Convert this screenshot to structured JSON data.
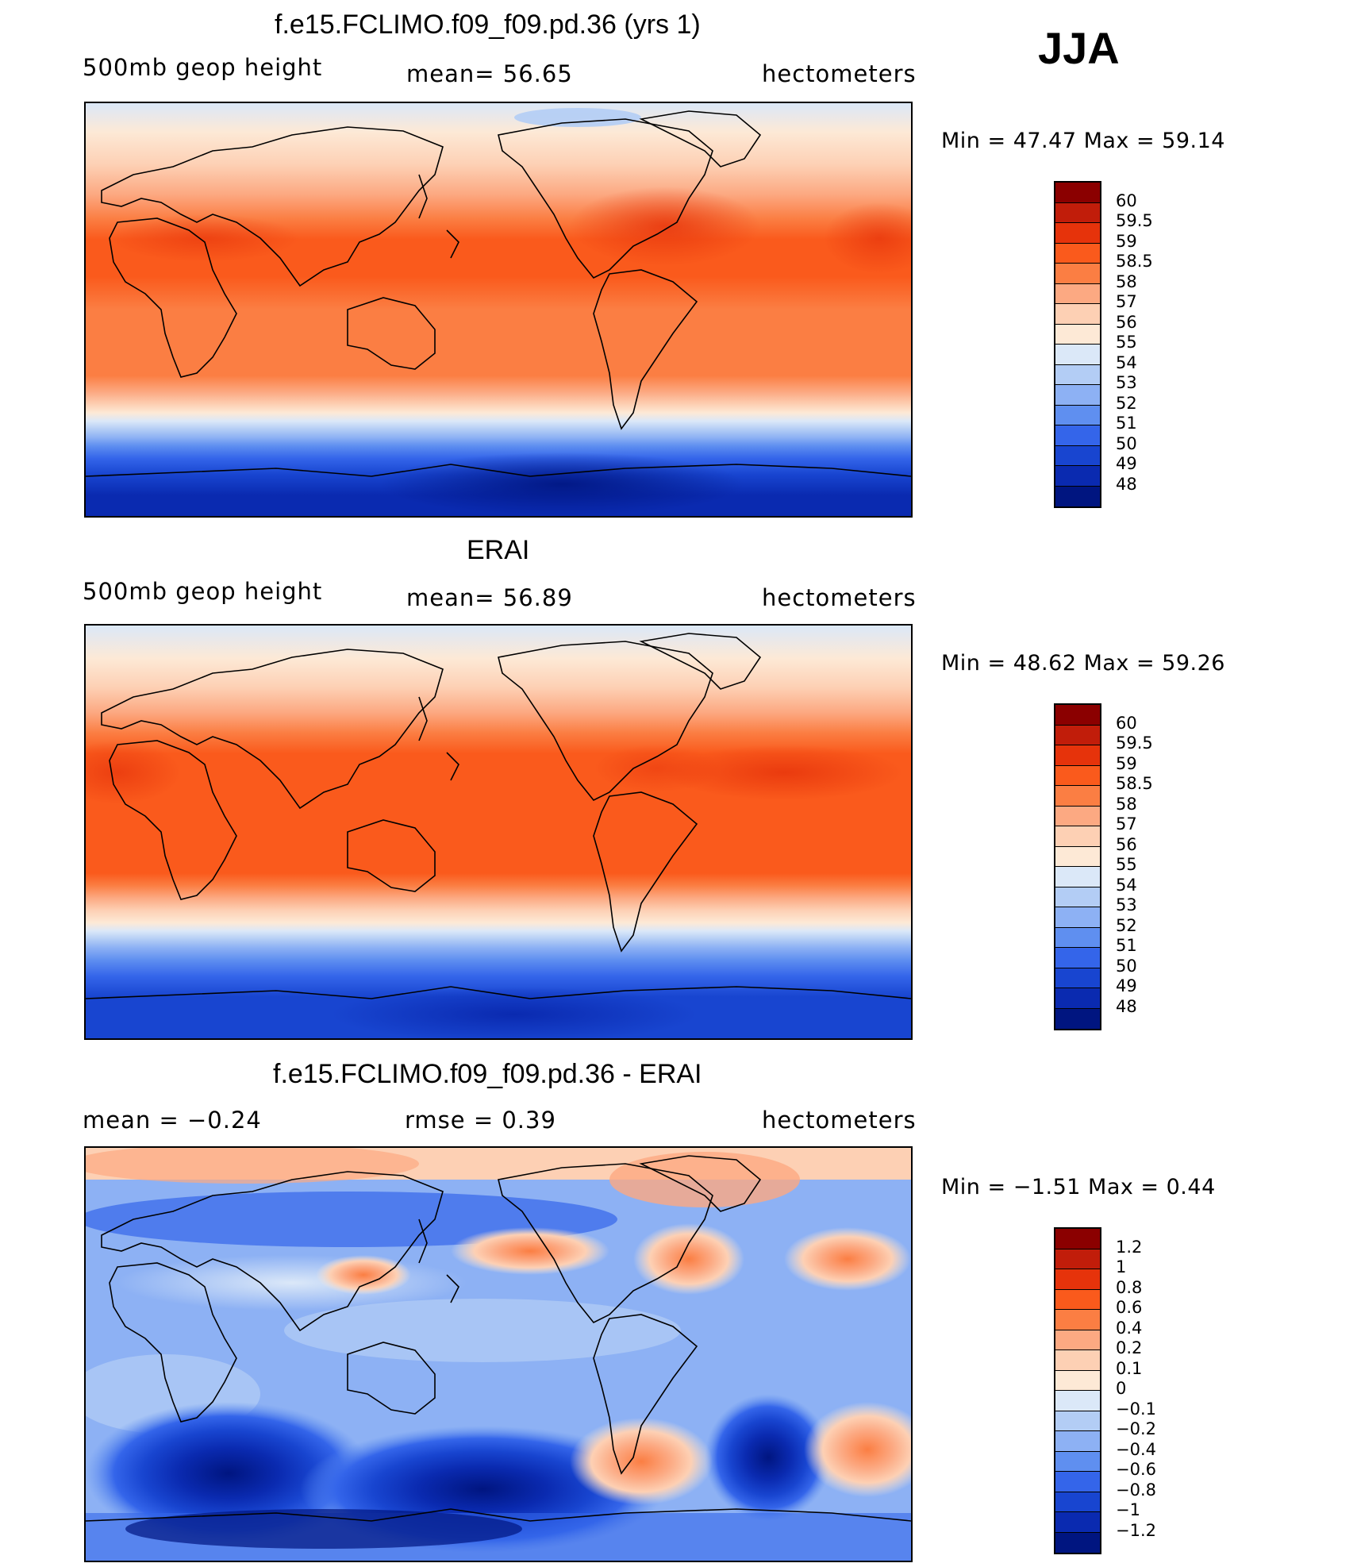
{
  "season": "JJA",
  "panels": [
    {
      "title": "f.e15.FCLIMO.f09_f09.pd.36 (yrs 1)",
      "left_label": "500mb  geop  height",
      "center_label": "mean=   56.65",
      "units": "hectometers",
      "stats": "Min  =    47.47  Max  =    59.14",
      "legend_labels": [
        "60",
        "59.5",
        "59",
        "58.5",
        "58",
        "57",
        "56",
        "55",
        "54",
        "53",
        "52",
        "51",
        "50",
        "49",
        "48"
      ],
      "legend_colors": [
        "#8b0000",
        "#c11d0a",
        "#e6330b",
        "#fa5a1c",
        "#fb7e43",
        "#fca982",
        "#fdd0b4",
        "#fde9d6",
        "#dbe8f8",
        "#b3cdf5",
        "#8db1f4",
        "#5f8ff0",
        "#3465ea",
        "#1845d0",
        "#0a2ab0",
        "#001580"
      ]
    },
    {
      "title": "ERAI",
      "left_label": "500mb  geop  height",
      "center_label": "mean=   56.89",
      "units": "hectometers",
      "stats": "Min  =    48.62  Max  =    59.26",
      "legend_labels": [
        "60",
        "59.5",
        "59",
        "58.5",
        "58",
        "57",
        "56",
        "55",
        "54",
        "53",
        "52",
        "51",
        "50",
        "49",
        "48"
      ],
      "legend_colors": [
        "#8b0000",
        "#c11d0a",
        "#e6330b",
        "#fa5a1c",
        "#fb7e43",
        "#fca982",
        "#fdd0b4",
        "#fde9d6",
        "#dbe8f8",
        "#b3cdf5",
        "#8db1f4",
        "#5f8ff0",
        "#3465ea",
        "#1845d0",
        "#0a2ab0",
        "#001580"
      ]
    },
    {
      "title": "f.e15.FCLIMO.f09_f09.pd.36 - ERAI",
      "left_label": "mean  =    −0.24",
      "center_label": "rmse  =     0.39",
      "units": "hectometers",
      "stats": "Min  =    −1.51  Max  =      0.44",
      "legend_labels": [
        "1.2",
        "1",
        "0.8",
        "0.6",
        "0.4",
        "0.2",
        "0.1",
        "0",
        "−0.1",
        "−0.2",
        "−0.4",
        "−0.6",
        "−0.8",
        "−1",
        "−1.2"
      ],
      "legend_colors": [
        "#8b0000",
        "#c11d0a",
        "#e6330b",
        "#fa5a1c",
        "#fb7e43",
        "#fca982",
        "#fdd0b4",
        "#fde9d6",
        "#dbe8f8",
        "#b3cdf5",
        "#8db1f4",
        "#5f8ff0",
        "#3465ea",
        "#1845d0",
        "#0a2ab0",
        "#001580"
      ]
    }
  ]
}
